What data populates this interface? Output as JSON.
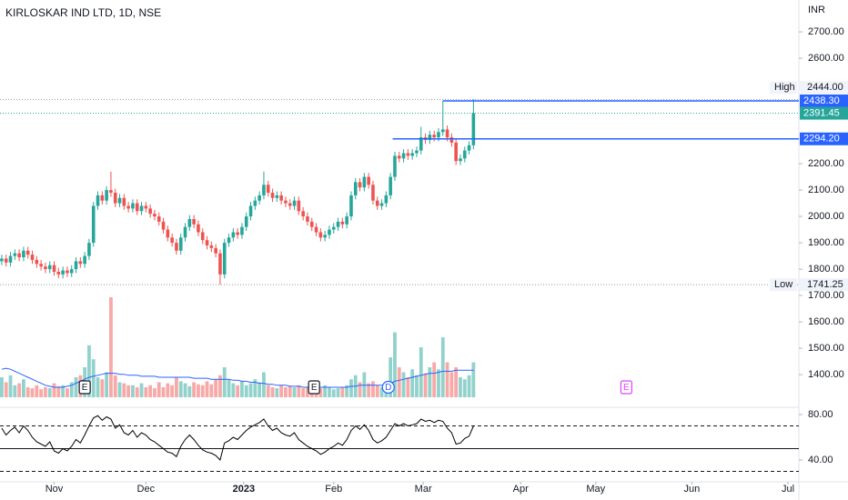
{
  "chart_data": {
    "type": "candlestick",
    "title": "KIRLOSKAR IND LTD, 1D, NSE",
    "currency": "INR",
    "up_color": "#26a69a",
    "down_color": "#ef5350",
    "ma_color": "#2962ff",
    "rsi_color": "#000000",
    "xlim": [
      -0.4,
      182.5
    ],
    "xticks": [
      {
        "value": 12,
        "label": "Nov"
      },
      {
        "value": 33,
        "label": "Dec"
      },
      {
        "value": 55.4,
        "label": "2023"
      },
      {
        "value": 76,
        "label": "Feb"
      },
      {
        "value": 96.5,
        "label": "Mar"
      },
      {
        "value": 118.8,
        "label": "Apr"
      },
      {
        "value": 136,
        "label": "May"
      },
      {
        "value": 158,
        "label": "Jun"
      },
      {
        "value": 180,
        "label": "Jul"
      }
    ],
    "ylim": [
      1276,
      2821
    ],
    "yticks": [
      {
        "value": 2700,
        "label": "2700.00"
      },
      {
        "value": 2600,
        "label": "2600.00"
      },
      {
        "value": 2200,
        "label": "2200.00"
      },
      {
        "value": 2100,
        "label": "2100.00"
      },
      {
        "value": 2000,
        "label": "2000.00"
      },
      {
        "value": 1900,
        "label": "1900.00"
      },
      {
        "value": 1800,
        "label": "1800.00"
      },
      {
        "value": 1700,
        "label": "1700.00"
      },
      {
        "value": 1600,
        "label": "1600.00"
      },
      {
        "value": 1500,
        "label": "1500.00"
      },
      {
        "value": 1400,
        "label": "1400.00"
      }
    ],
    "open": [
      1830,
      1840,
      1825,
      1850,
      1860,
      1845,
      1870,
      1855,
      1835,
      1820,
      1810,
      1800,
      1815,
      1790,
      1780,
      1795,
      1785,
      1800,
      1830,
      1820,
      1850,
      1900,
      2040,
      2080,
      2060,
      2100,
      2090,
      2050,
      2070,
      2040,
      2030,
      2050,
      2020,
      2040,
      2030,
      2010,
      2000,
      1980,
      1950,
      1920,
      1900,
      1870,
      1920,
      1960,
      1990,
      1970,
      1940,
      1910,
      1890,
      1880,
      1860,
      1780,
      1900,
      1920,
      1940,
      1930,
      1960,
      2000,
      2040,
      2060,
      2080,
      2120,
      2090,
      2070,
      2080,
      2060,
      2050,
      2040,
      2060,
      2020,
      2000,
      1980,
      1960,
      1940,
      1920,
      1930,
      1950,
      1960,
      1980,
      1970,
      2000,
      2080,
      2130,
      2110,
      2150,
      2120,
      2060,
      2040,
      2050,
      2080,
      2150,
      2230,
      2220,
      2240,
      2230,
      2240,
      2250,
      2300,
      2290,
      2310,
      2300,
      2320,
      2330,
      2300,
      2280,
      2210,
      2220,
      2250,
      2270
    ],
    "high": [
      1855,
      1855,
      1865,
      1875,
      1875,
      1885,
      1885,
      1870,
      1850,
      1835,
      1825,
      1830,
      1830,
      1805,
      1810,
      1810,
      1815,
      1845,
      1845,
      1865,
      1915,
      2055,
      2095,
      2095,
      2115,
      2170,
      2105,
      2085,
      2085,
      2055,
      2065,
      2065,
      2055,
      2055,
      2045,
      2025,
      2015,
      1995,
      1965,
      1935,
      1915,
      1935,
      1975,
      2005,
      2005,
      1985,
      1955,
      1925,
      1905,
      1895,
      1875,
      1915,
      1935,
      1955,
      1955,
      1975,
      2015,
      2055,
      2075,
      2095,
      2170,
      2135,
      2105,
      2095,
      2095,
      2075,
      2065,
      2075,
      2075,
      2035,
      2015,
      1995,
      1975,
      1955,
      1945,
      1965,
      1975,
      1995,
      1995,
      2015,
      2095,
      2145,
      2145,
      2165,
      2165,
      2135,
      2075,
      2065,
      2095,
      2165,
      2245,
      2245,
      2255,
      2255,
      2255,
      2265,
      2340,
      2315,
      2325,
      2325,
      2335,
      2438.3,
      2345,
      2315,
      2295,
      2235,
      2265,
      2285,
      2444
    ],
    "low": [
      1815,
      1810,
      1810,
      1835,
      1830,
      1830,
      1840,
      1820,
      1805,
      1795,
      1785,
      1785,
      1775,
      1765,
      1765,
      1770,
      1770,
      1785,
      1805,
      1805,
      1835,
      1885,
      2025,
      2045,
      2045,
      2075,
      2035,
      2035,
      2025,
      2015,
      2015,
      2005,
      2005,
      2015,
      1995,
      1985,
      1965,
      1935,
      1905,
      1885,
      1855,
      1855,
      1905,
      1945,
      1955,
      1925,
      1895,
      1875,
      1865,
      1845,
      1741.25,
      1765,
      1885,
      1905,
      1915,
      1915,
      1945,
      1985,
      2025,
      2045,
      2065,
      2075,
      2055,
      2055,
      2045,
      2035,
      2025,
      2025,
      2005,
      1985,
      1965,
      1945,
      1925,
      1905,
      1905,
      1915,
      1935,
      1945,
      1955,
      1955,
      1985,
      2065,
      2095,
      2095,
      2105,
      2045,
      2025,
      2025,
      2035,
      2065,
      2135,
      2205,
      2205,
      2215,
      2215,
      2225,
      2235,
      2275,
      2275,
      2285,
      2285,
      2305,
      2285,
      2265,
      2195,
      2195,
      2205,
      2235,
      2255
    ],
    "close": [
      1840,
      1825,
      1850,
      1860,
      1845,
      1870,
      1855,
      1835,
      1820,
      1810,
      1800,
      1815,
      1790,
      1780,
      1795,
      1785,
      1800,
      1830,
      1820,
      1850,
      1900,
      2040,
      2080,
      2060,
      2100,
      2090,
      2050,
      2070,
      2040,
      2030,
      2050,
      2020,
      2040,
      2030,
      2010,
      2000,
      1980,
      1950,
      1920,
      1900,
      1870,
      1920,
      1960,
      1990,
      1970,
      1940,
      1910,
      1890,
      1880,
      1860,
      1780,
      1900,
      1920,
      1940,
      1930,
      1960,
      2000,
      2040,
      2060,
      2080,
      2120,
      2090,
      2070,
      2080,
      2060,
      2050,
      2040,
      2060,
      2020,
      2000,
      1980,
      1960,
      1940,
      1920,
      1930,
      1950,
      1960,
      1980,
      1970,
      2000,
      2080,
      2130,
      2110,
      2150,
      2120,
      2060,
      2040,
      2050,
      2080,
      2150,
      2230,
      2220,
      2240,
      2230,
      2240,
      2250,
      2300,
      2290,
      2310,
      2300,
      2320,
      2330,
      2300,
      2280,
      2210,
      2220,
      2250,
      2270,
      2391.45
    ],
    "vlim": [
      0,
      100
    ],
    "volume": [
      20,
      15,
      22,
      12,
      14,
      18,
      10,
      9,
      12,
      8,
      10,
      9,
      14,
      11,
      12,
      9,
      15,
      20,
      22,
      30,
      52,
      38,
      20,
      18,
      25,
      100,
      22,
      15,
      14,
      12,
      12,
      10,
      14,
      10,
      12,
      9,
      15,
      10,
      14,
      12,
      20,
      16,
      14,
      11,
      15,
      13,
      12,
      16,
      13,
      18,
      22,
      30,
      18,
      14,
      12,
      16,
      12,
      14,
      18,
      15,
      25,
      12,
      10,
      9,
      12,
      10,
      11,
      10,
      12,
      9,
      10,
      10,
      11,
      9,
      12,
      10,
      8,
      9,
      10,
      12,
      18,
      22,
      15,
      25,
      14,
      16,
      12,
      10,
      15,
      40,
      65,
      30,
      25,
      20,
      28,
      22,
      50,
      24,
      30,
      35,
      28,
      60,
      35,
      25,
      30,
      20,
      18,
      22,
      35
    ],
    "volume_ma": [
      28,
      29,
      28,
      26,
      24,
      22,
      20,
      18,
      16,
      14,
      12,
      11,
      10,
      10,
      10,
      11,
      12,
      14,
      16,
      18,
      20,
      21,
      22,
      23,
      24,
      24,
      24,
      23,
      23,
      22,
      22,
      22,
      21,
      21,
      21,
      21,
      20,
      20,
      20,
      20,
      20,
      20,
      20,
      20,
      19,
      19,
      19,
      19,
      18,
      18,
      18,
      18,
      18,
      17,
      17,
      16,
      16,
      15,
      15,
      14,
      14,
      13,
      13,
      12,
      12,
      12,
      11,
      11,
      11,
      10,
      10,
      10,
      10,
      10,
      10,
      10,
      10,
      10,
      10,
      10,
      11,
      11,
      12,
      12,
      12,
      12,
      12,
      12,
      13,
      14,
      16,
      17,
      18,
      19,
      20,
      21,
      22,
      23,
      24,
      24,
      25,
      26,
      26,
      26,
      27,
      27,
      27,
      27,
      27
    ],
    "rsi_lim": [
      20.8,
      86.4
    ],
    "rsi_ticks": [
      {
        "value": 80,
        "label": "80.00"
      },
      {
        "value": 40,
        "label": "40.00"
      }
    ],
    "rsi_levels": [
      70,
      50,
      30
    ],
    "rsi": [
      68,
      62,
      66,
      69,
      64,
      70,
      66,
      60,
      56,
      54,
      52,
      56,
      48,
      46,
      50,
      48,
      52,
      58,
      55,
      62,
      70,
      77,
      79,
      75,
      78,
      76,
      68,
      71,
      64,
      62,
      66,
      60,
      64,
      62,
      58,
      56,
      53,
      50,
      47,
      46,
      43,
      52,
      58,
      62,
      58,
      53,
      49,
      47,
      46,
      44,
      40,
      55,
      57,
      60,
      58,
      62,
      66,
      69,
      71,
      73,
      76,
      70,
      66,
      68,
      64,
      62,
      61,
      64,
      58,
      55,
      52,
      50,
      48,
      45,
      47,
      50,
      52,
      55,
      53,
      58,
      66,
      70,
      67,
      71,
      66,
      58,
      55,
      57,
      60,
      66,
      72,
      70,
      72,
      70,
      71,
      72,
      76,
      74,
      75,
      73,
      75,
      74,
      68,
      64,
      54,
      55,
      59,
      61,
      70
    ],
    "price_levels": [
      {
        "name": "High",
        "value": 2444,
        "label": "2444.00"
      },
      {
        "name": "Low",
        "value": 1741.25,
        "label": "1741.25"
      }
    ],
    "last_price": {
      "value": 2391.45,
      "label": "2391.45"
    },
    "drawn_lines": [
      {
        "value": 2438.3,
        "label": "2438.30",
        "from": 101
      },
      {
        "value": 2294.2,
        "label": "2294.20",
        "from": 89.5
      }
    ],
    "events": [
      {
        "label": "E",
        "x": 19
      },
      {
        "label": "E",
        "x": 71.5
      },
      {
        "label": "D",
        "x": 88.5
      },
      {
        "label": "E",
        "x": 143
      }
    ]
  }
}
